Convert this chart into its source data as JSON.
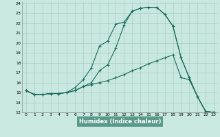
{
  "xlabel": "Humidex (Indice chaleur)",
  "xlim": [
    -0.5,
    23.5
  ],
  "ylim": [
    13,
    24.2
  ],
  "xticks": [
    0,
    1,
    2,
    3,
    4,
    5,
    6,
    7,
    8,
    9,
    10,
    11,
    12,
    13,
    14,
    15,
    16,
    17,
    18,
    19,
    20,
    21,
    22,
    23
  ],
  "yticks": [
    13,
    14,
    15,
    16,
    17,
    18,
    19,
    20,
    21,
    22,
    23,
    24
  ],
  "bg_color": "#c8e8e0",
  "plot_bg_color": "#c8e8e0",
  "bottom_bar_color": "#5a9a8a",
  "line_color": "#1a6b5a",
  "grid_color": "#aacec6",
  "line1_x": [
    0,
    1,
    2,
    3,
    4,
    5,
    6,
    7,
    8,
    9,
    10,
    11,
    12,
    13,
    14,
    15,
    16,
    17,
    18,
    19,
    20,
    21,
    22,
    23
  ],
  "line1_y": [
    15.2,
    14.8,
    14.8,
    14.9,
    14.9,
    15.0,
    15.5,
    16.3,
    17.5,
    19.7,
    20.2,
    21.9,
    22.1,
    23.2,
    23.5,
    23.6,
    23.6,
    22.9,
    21.7,
    18.5,
    16.5,
    14.6,
    13.1,
    13.0
  ],
  "line2_x": [
    0,
    1,
    2,
    3,
    4,
    5,
    6,
    7,
    8,
    9,
    10,
    11,
    12,
    13,
    14,
    15,
    16,
    17,
    18,
    19,
    20,
    21,
    22,
    23
  ],
  "line2_y": [
    15.2,
    14.8,
    14.8,
    14.9,
    14.9,
    15.0,
    15.2,
    15.6,
    16.0,
    17.2,
    17.8,
    19.5,
    21.8,
    23.2,
    23.5,
    23.6,
    23.6,
    22.9,
    21.7,
    18.5,
    16.5,
    14.6,
    13.1,
    13.0
  ],
  "line3_x": [
    0,
    1,
    2,
    3,
    4,
    5,
    6,
    7,
    8,
    9,
    10,
    11,
    12,
    13,
    14,
    15,
    16,
    17,
    18,
    19,
    20,
    21,
    22,
    23
  ],
  "line3_y": [
    15.2,
    14.8,
    14.8,
    14.9,
    14.9,
    15.0,
    15.2,
    15.6,
    15.8,
    16.0,
    16.2,
    16.5,
    16.8,
    17.2,
    17.5,
    17.9,
    18.2,
    18.5,
    18.8,
    16.5,
    16.3,
    14.6,
    13.1,
    13.0
  ]
}
